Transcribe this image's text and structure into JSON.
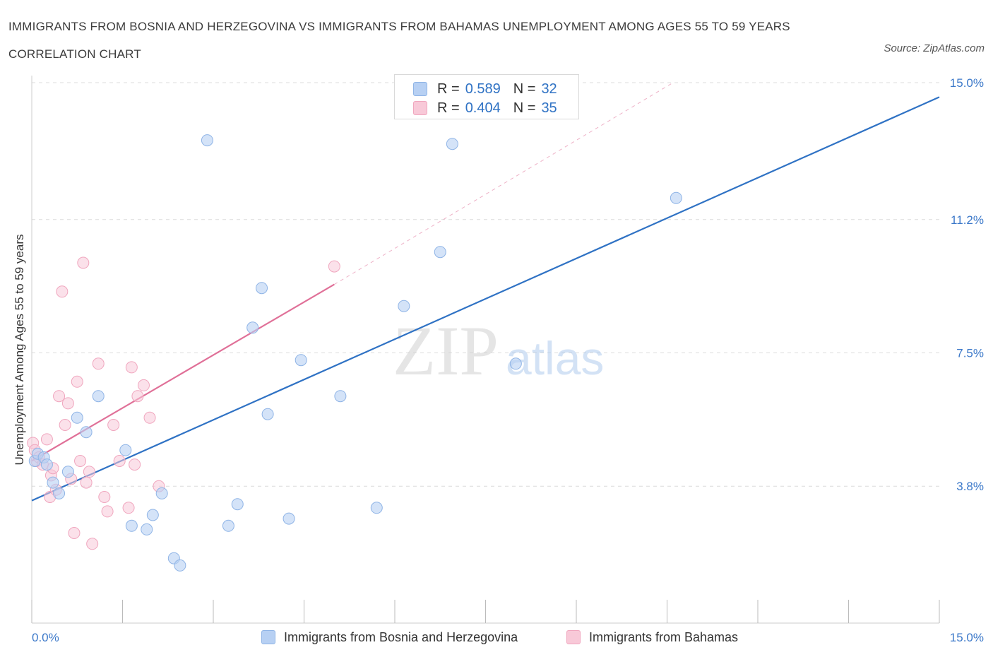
{
  "header": {
    "title": "IMMIGRANTS FROM BOSNIA AND HERZEGOVINA VS IMMIGRANTS FROM BAHAMAS UNEMPLOYMENT AMONG AGES 55 TO 59 YEARS CORRELATION CHART",
    "source": "Source: ZipAtlas.com"
  },
  "legend": {
    "rows": [
      {
        "r_label": "R =",
        "r_value": "0.589",
        "n_label": "N =",
        "n_value": "32"
      },
      {
        "r_label": "R =",
        "r_value": "0.404",
        "n_label": "N =",
        "n_value": "35"
      }
    ],
    "bottom": [
      "Immigrants from Bosnia and Herzegovina",
      "Immigrants from Bahamas"
    ]
  },
  "watermark": {
    "zip": "ZIP",
    "atlas": "atlas"
  },
  "colors": {
    "blue_fill": "#b7d0f3",
    "blue_stroke": "#8fb4e6",
    "blue_line": "#2f72c4",
    "pink_fill": "#f8c9d8",
    "pink_stroke": "#f0a6be",
    "pink_line": "#e07098",
    "tick_label": "#3b78c9",
    "grid": "#dcdcdc"
  },
  "chart_data": {
    "type": "scatter",
    "ylabel": "Unemployment Among Ages 55 to 59 years",
    "xlim": [
      0,
      15
    ],
    "ylim": [
      0,
      15
    ],
    "x_tick_labels": [
      "0.0%",
      "15.0%"
    ],
    "y_ticks": [
      3.8,
      7.5,
      11.2,
      15.0
    ],
    "y_tick_labels": [
      "3.8%",
      "7.5%",
      "11.2%",
      "15.0%"
    ],
    "grid": true,
    "legend_position": "top-center",
    "series": [
      {
        "name": "Immigrants from Bosnia and Herzegovina",
        "color": "#b7d0f3",
        "points": [
          [
            0.05,
            4.5
          ],
          [
            0.1,
            4.7
          ],
          [
            0.2,
            4.6
          ],
          [
            0.25,
            4.4
          ],
          [
            0.35,
            3.9
          ],
          [
            0.45,
            3.6
          ],
          [
            0.6,
            4.2
          ],
          [
            0.75,
            5.7
          ],
          [
            0.9,
            5.3
          ],
          [
            1.1,
            6.3
          ],
          [
            1.55,
            4.8
          ],
          [
            1.65,
            2.7
          ],
          [
            1.9,
            2.6
          ],
          [
            2.0,
            3.0
          ],
          [
            2.15,
            3.6
          ],
          [
            2.35,
            1.8
          ],
          [
            2.45,
            1.6
          ],
          [
            2.9,
            13.4
          ],
          [
            3.25,
            2.7
          ],
          [
            3.4,
            3.3
          ],
          [
            3.65,
            8.2
          ],
          [
            3.8,
            9.3
          ],
          [
            3.9,
            5.8
          ],
          [
            4.25,
            2.9
          ],
          [
            4.45,
            7.3
          ],
          [
            5.1,
            6.3
          ],
          [
            5.7,
            3.2
          ],
          [
            6.15,
            8.8
          ],
          [
            6.75,
            10.3
          ],
          [
            6.95,
            13.3
          ],
          [
            8.0,
            7.2
          ],
          [
            10.65,
            11.8
          ]
        ],
        "trend": {
          "x": [
            0,
            15
          ],
          "y": [
            3.4,
            14.6
          ]
        }
      },
      {
        "name": "Immigrants from Bahamas",
        "color": "#f8c9d8",
        "points": [
          [
            0.02,
            5.0
          ],
          [
            0.05,
            4.8
          ],
          [
            0.08,
            4.5
          ],
          [
            0.12,
            4.6
          ],
          [
            0.18,
            4.4
          ],
          [
            0.25,
            5.1
          ],
          [
            0.3,
            3.5
          ],
          [
            0.32,
            4.1
          ],
          [
            0.35,
            4.3
          ],
          [
            0.4,
            3.7
          ],
          [
            0.45,
            6.3
          ],
          [
            0.5,
            9.2
          ],
          [
            0.55,
            5.5
          ],
          [
            0.6,
            6.1
          ],
          [
            0.65,
            4.0
          ],
          [
            0.7,
            2.5
          ],
          [
            0.75,
            6.7
          ],
          [
            0.8,
            4.5
          ],
          [
            0.85,
            10.0
          ],
          [
            0.9,
            3.9
          ],
          [
            0.95,
            4.2
          ],
          [
            1.0,
            2.2
          ],
          [
            1.1,
            7.2
          ],
          [
            1.2,
            3.5
          ],
          [
            1.25,
            3.1
          ],
          [
            1.35,
            5.5
          ],
          [
            1.45,
            4.5
          ],
          [
            1.6,
            3.2
          ],
          [
            1.65,
            7.1
          ],
          [
            1.7,
            4.4
          ],
          [
            1.75,
            6.3
          ],
          [
            1.85,
            6.6
          ],
          [
            1.95,
            5.7
          ],
          [
            2.1,
            3.8
          ],
          [
            5.0,
            9.9
          ]
        ],
        "trend": {
          "x": [
            0,
            5.0
          ],
          "y": [
            4.5,
            9.4
          ]
        },
        "trend_extension": {
          "x": [
            5.0,
            10.6
          ],
          "y": [
            9.4,
            15.0
          ]
        }
      }
    ]
  }
}
